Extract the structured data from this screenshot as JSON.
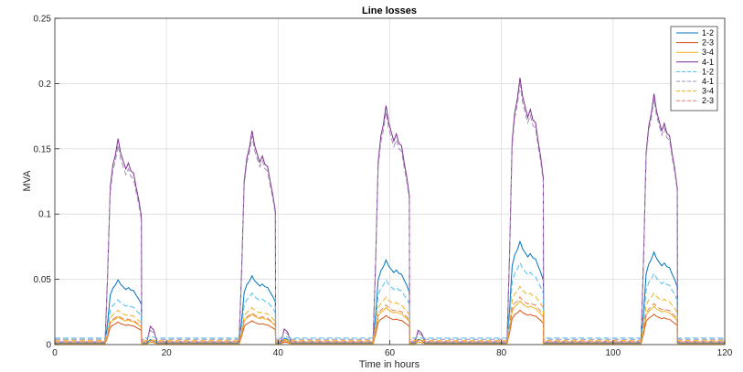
{
  "chart_data": {
    "type": "line",
    "title": "Line losses",
    "xlabel": "Time in hours",
    "ylabel": "MVA",
    "xlim": [
      0,
      120
    ],
    "ylim": [
      0,
      0.25
    ],
    "xticks": [
      0,
      20,
      40,
      60,
      80,
      100,
      120
    ],
    "yticks": [
      0,
      0.05,
      0.1,
      0.15,
      0.2,
      0.25
    ],
    "xtick_labels": [
      "0",
      "20",
      "40",
      "60",
      "80",
      "100",
      "120"
    ],
    "ytick_labels": [
      "0",
      "0.05",
      "0.1",
      "0.15",
      "0.2",
      "0.25"
    ],
    "grid": true,
    "legend_position": "top-right",
    "day_windows": [
      {
        "start": 9,
        "end": 15.5
      },
      {
        "start": 33,
        "end": 39.5
      },
      {
        "start": 57,
        "end": 63.5
      },
      {
        "start": 81,
        "end": 87.5
      },
      {
        "start": 105,
        "end": 111.5
      }
    ],
    "peak_shape": [
      0,
      0.35,
      0.78,
      0.87,
      0.94,
      1.0,
      0.95,
      0.89,
      0.87,
      0.88,
      0.86,
      0.83,
      0.78,
      0.7,
      0.63
    ],
    "series": [
      {
        "name": "1-2",
        "color": "#0072BD",
        "dash": "solid",
        "peaks": [
          0.049,
          0.052,
          0.064,
          0.078,
          0.07
        ],
        "baseline": 0.001,
        "small_bumps": [
          0.004,
          0.005,
          0.004
        ]
      },
      {
        "name": "2-3",
        "color": "#D95319",
        "dash": "solid",
        "peaks": [
          0.017,
          0.018,
          0.022,
          0.026,
          0.023
        ],
        "baseline": 0.0005,
        "small_bumps": [
          0.002,
          0.002,
          0.002
        ]
      },
      {
        "name": "3-4",
        "color": "#EDB120",
        "dash": "solid",
        "peaks": [
          0.021,
          0.023,
          0.028,
          0.033,
          0.029
        ],
        "baseline": 0.0005,
        "small_bumps": [
          0.002,
          0.003,
          0.002
        ]
      },
      {
        "name": "4-1",
        "color": "#7E2F8E",
        "dash": "solid",
        "peaks": [
          0.156,
          0.162,
          0.181,
          0.202,
          0.19
        ],
        "baseline": 0.002,
        "small_bumps": [
          0.014,
          0.012,
          0.011
        ]
      },
      {
        "name": "1-2",
        "color": "#4DBEEE",
        "dash": "dashed",
        "peaks": [
          0.034,
          0.039,
          0.049,
          0.062,
          0.054
        ],
        "baseline": 0.005,
        "small_bumps": [
          0.007,
          0.007,
          0.006
        ]
      },
      {
        "name": "4-1",
        "color": "#A08FB5",
        "dash": "dashed",
        "peaks": [
          0.151,
          0.158,
          0.176,
          0.197,
          0.186
        ],
        "baseline": 0.004,
        "small_bumps": [
          0.011,
          0.01,
          0.009
        ]
      },
      {
        "name": "3-4",
        "color": "#EDB120",
        "dash": "dashed",
        "peaks": [
          0.026,
          0.028,
          0.036,
          0.044,
          0.039
        ],
        "baseline": 0.003,
        "small_bumps": [
          0.004,
          0.004,
          0.004
        ]
      },
      {
        "name": "2-3",
        "color": "#E8825A",
        "dash": "dashed",
        "peaks": [
          0.022,
          0.024,
          0.03,
          0.036,
          0.031
        ],
        "baseline": 0.002,
        "small_bumps": [
          0.003,
          0.003,
          0.003
        ]
      }
    ]
  }
}
